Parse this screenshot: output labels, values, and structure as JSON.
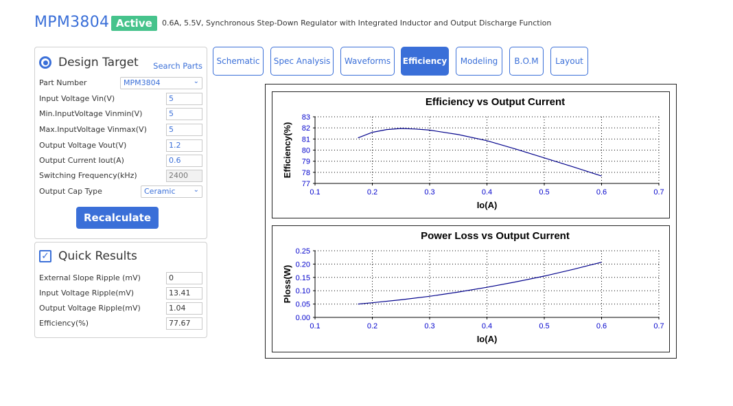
{
  "header": {
    "part": "MPM3804",
    "status": "Active",
    "description": "0.6A, 5.5V, Synchronous Step-Down Regulator with Integrated Inductor and Output Discharge Function"
  },
  "colors": {
    "accent": "#3a6fd8",
    "status": "#46c38c",
    "curve": "#00008b",
    "axis_text": "#0000cc"
  },
  "design": {
    "title": "Design Target",
    "search_link": "Search Parts",
    "part_number_label": "Part Number",
    "part_number": "MPM3804",
    "fields": [
      {
        "label": "Input Voltage Vin(V)",
        "value": "5"
      },
      {
        "label": "Min.InputVoltage Vinmin(V)",
        "value": "5"
      },
      {
        "label": "Max.InputVoltage Vinmax(V)",
        "value": "5"
      },
      {
        "label": "Output Voltage Vout(V)",
        "value": "1.2"
      },
      {
        "label": "Output Current Iout(A)",
        "value": "0.6"
      },
      {
        "label": "Switching Frequency(kHz)",
        "value": "2400"
      }
    ],
    "cap_type_label": "Output Cap Type",
    "cap_type": "Ceramic",
    "recalc_label": "Recalculate"
  },
  "quick": {
    "title": "Quick Results",
    "fields": [
      {
        "label": "External Slope Ripple (mV)",
        "value": "0"
      },
      {
        "label": "Input Voltage Ripple(mV)",
        "value": "13.41"
      },
      {
        "label": "Output Voltage Ripple(mV)",
        "value": "1.04"
      },
      {
        "label": "Efficiency(%)",
        "value": "77.67"
      }
    ]
  },
  "tabs": [
    {
      "label": "Schematic",
      "active": false
    },
    {
      "label": "Spec Analysis",
      "active": false
    },
    {
      "label": "Waveforms",
      "active": false
    },
    {
      "label": "Efficiency",
      "active": true
    },
    {
      "label": "Modeling",
      "active": false
    },
    {
      "label": "B.O.M",
      "active": false
    },
    {
      "label": "Layout",
      "active": false
    }
  ],
  "chart_data": [
    {
      "type": "line",
      "title": "Efficiency vs Output Current",
      "xlabel": "Io(A)",
      "ylabel": "Efficiency(%)",
      "xlim": [
        0.1,
        0.7
      ],
      "ylim": [
        77,
        83
      ],
      "xticks": [
        "0.1",
        "0.2",
        "0.3",
        "0.4",
        "0.5",
        "0.6",
        "0.7"
      ],
      "yticks": [
        "77",
        "78",
        "79",
        "80",
        "81",
        "82",
        "83"
      ],
      "grid": true,
      "series": [
        {
          "x": [
            0.175,
            0.2,
            0.225,
            0.25,
            0.275,
            0.3,
            0.35,
            0.4,
            0.45,
            0.5,
            0.55,
            0.6
          ],
          "y": [
            81.1,
            81.6,
            81.85,
            81.95,
            81.9,
            81.8,
            81.4,
            80.85,
            80.1,
            79.3,
            78.5,
            77.67
          ]
        }
      ]
    },
    {
      "type": "line",
      "title": "Power Loss vs Output Current",
      "xlabel": "Io(A)",
      "ylabel": "Ploss(W)",
      "xlim": [
        0.1,
        0.7
      ],
      "ylim": [
        0,
        0.25
      ],
      "xticks": [
        "0.1",
        "0.2",
        "0.3",
        "0.4",
        "0.5",
        "0.6",
        "0.7"
      ],
      "yticks": [
        "0.00",
        "0.05",
        "0.10",
        "0.15",
        "0.20",
        "0.25"
      ],
      "grid": true,
      "series": [
        {
          "x": [
            0.175,
            0.2,
            0.25,
            0.3,
            0.35,
            0.4,
            0.45,
            0.5,
            0.55,
            0.6
          ],
          "y": [
            0.05,
            0.055,
            0.066,
            0.079,
            0.095,
            0.113,
            0.133,
            0.155,
            0.18,
            0.207
          ]
        }
      ]
    }
  ]
}
